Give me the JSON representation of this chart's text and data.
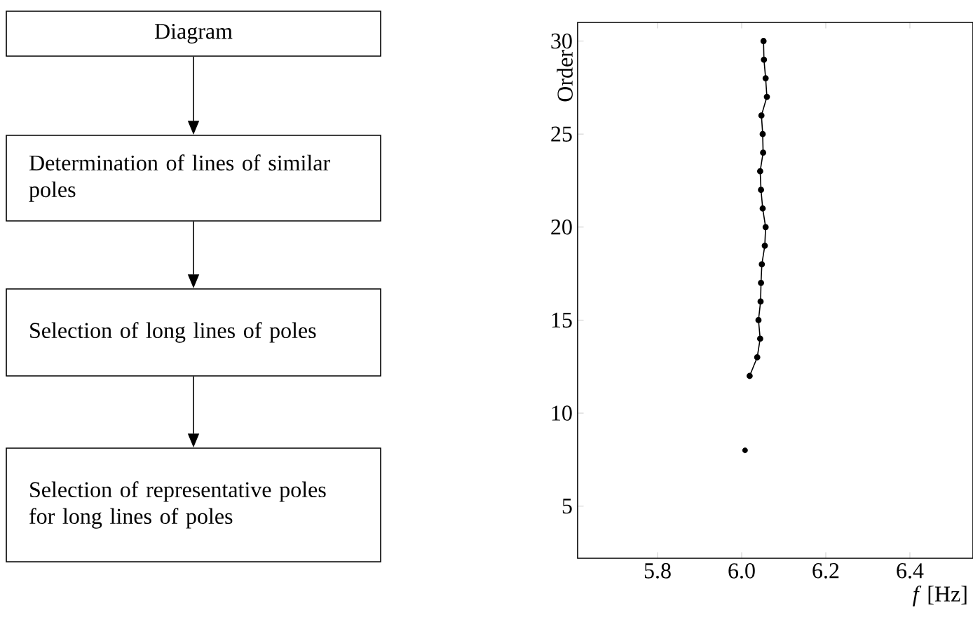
{
  "chart_data": [
    {
      "type": "other",
      "annotations": [
        "Diagram",
        "Determination of lines of similar poles",
        "Selection of long lines of poles",
        "Selection of representative poles for long lines of poles"
      ]
    },
    {
      "type": "line",
      "xlabel": "*f* [Hz]",
      "ylabel": "Order",
      "xlim": [
        5.61,
        6.55
      ],
      "ylim": [
        2.2,
        31
      ],
      "xticks": [
        5.8,
        {
          "value": 6.0,
          "label": "6.0"
        },
        6.2,
        6.4
      ],
      "yticks": [
        5,
        10,
        15,
        20,
        25,
        30
      ],
      "marker": "circle",
      "series": [
        {
          "type": "line",
          "color": "#000000",
          "x": [
            6.019,
            6.037,
            6.044,
            6.04,
            6.045,
            6.046,
            6.048,
            6.055,
            6.057,
            6.05,
            6.046,
            6.044,
            6.051,
            6.05,
            6.047,
            6.06,
            6.057,
            6.053,
            6.052
          ],
          "values": [
            12,
            13,
            14,
            15,
            16,
            17,
            18,
            19,
            20,
            21,
            22,
            23,
            24,
            25,
            26,
            27,
            28,
            29,
            30
          ]
        },
        {
          "type": "scatter",
          "color": "#000000",
          "x": [
            6.008
          ],
          "values": [
            8
          ]
        }
      ]
    }
  ]
}
